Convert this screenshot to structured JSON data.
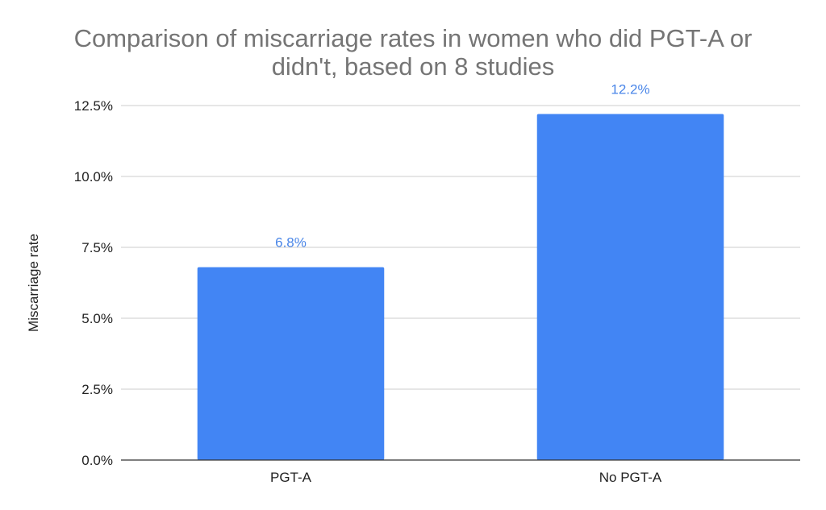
{
  "chart_data": {
    "type": "bar",
    "title_lines": [
      "Comparison of miscarriage rates in women who did PGT-A or",
      "didn't, based on 8 studies"
    ],
    "xlabel": "",
    "ylabel": "Miscarriage rate",
    "categories": [
      "PGT-A",
      "No PGT-A"
    ],
    "values": [
      6.8,
      12.2
    ],
    "data_labels": [
      "6.8%",
      "12.2%"
    ],
    "ylim": [
      0,
      12.5
    ],
    "yticks": [
      0,
      2.5,
      5,
      7.5,
      10,
      12.5
    ],
    "ytick_labels": [
      "0.0%",
      "2.5%",
      "5.0%",
      "7.5%",
      "10.0%",
      "12.5%"
    ],
    "grid": true,
    "legend": "none",
    "bar_color": "#4285f4",
    "label_color": "#4a86e8"
  }
}
